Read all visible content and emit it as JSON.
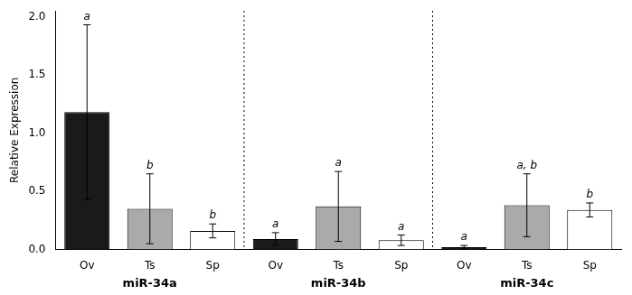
{
  "chart_data": {
    "type": "bar",
    "ylabel": "Relative Expression",
    "groups": [
      "miR-34a",
      "miR-34b",
      "miR-34c"
    ],
    "categories": [
      "Ov",
      "Ts",
      "Sp",
      "Ov",
      "Ts",
      "Sp",
      "Ov",
      "Ts",
      "Sp"
    ],
    "values": [
      1.18,
      0.35,
      0.16,
      0.09,
      0.37,
      0.08,
      0.02,
      0.38,
      0.34
    ],
    "error_bars": [
      0.75,
      0.3,
      0.06,
      0.055,
      0.3,
      0.045,
      0.015,
      0.27,
      0.06
    ],
    "significance_labels": [
      "a",
      "b",
      "b",
      "a",
      "a",
      "a",
      "a",
      "a, b",
      "b"
    ],
    "colors": [
      "#1a1a1a",
      "#aaaaaa",
      "#ffffff",
      "#1a1a1a",
      "#aaaaaa",
      "#ffffff",
      "#1a1a1a",
      "#aaaaaa",
      "#ffffff"
    ],
    "ylim": [
      0,
      2.05
    ],
    "yticks": [
      {
        "value": 0,
        "label": "0.0"
      },
      {
        "value": 0.5,
        "label": "0.5"
      },
      {
        "value": 1,
        "label": "1.0"
      },
      {
        "value": 1.5,
        "label": "1.5"
      },
      {
        "value": 2,
        "label": "2.0"
      }
    ],
    "grid": false
  }
}
